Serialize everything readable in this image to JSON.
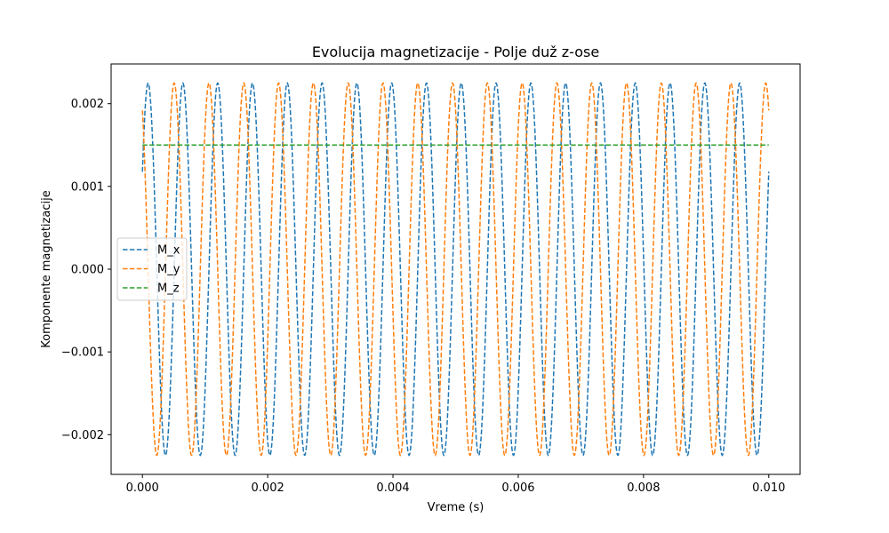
{
  "chart_data": {
    "type": "line",
    "title": "Evolucija magnetizacije - Polje duž z-ose",
    "xlabel": "Vreme (s)",
    "ylabel": "Komponente magnetizacije",
    "xlim": [
      -0.0005,
      0.0105
    ],
    "ylim": [
      -0.00248,
      0.00248
    ],
    "xticks": [
      0.0,
      0.002,
      0.004,
      0.006,
      0.008,
      0.01
    ],
    "xtick_labels": [
      "0.000",
      "0.002",
      "0.004",
      "0.006",
      "0.008",
      "0.010"
    ],
    "yticks": [
      -0.002,
      -0.001,
      0.0,
      0.001,
      0.002
    ],
    "ytick_labels": [
      "−0.002",
      "−0.001",
      "0.000",
      "0.001",
      "0.002"
    ],
    "grid": false,
    "legend_position": "center-left",
    "line_style": "dashed",
    "series": [
      {
        "name": "M_x",
        "color": "#1f77b4",
        "function": "amplitude*cos(2*pi*frequency*t + phase)",
        "amplitude": 0.00225,
        "frequency": 1800,
        "phase": -1.02,
        "t_start": 0.0,
        "t_end": 0.01
      },
      {
        "name": "M_y",
        "color": "#ff7f0e",
        "function": "amplitude*sin(2*pi*frequency*t + phase)",
        "amplitude": 0.00225,
        "frequency": 1800,
        "phase": 2.12,
        "t_start": 0.0,
        "t_end": 0.01
      },
      {
        "name": "M_z",
        "color": "#2ca02c",
        "function": "constant",
        "value": 0.0015,
        "t_start": 0.0,
        "t_end": 0.01
      }
    ]
  }
}
